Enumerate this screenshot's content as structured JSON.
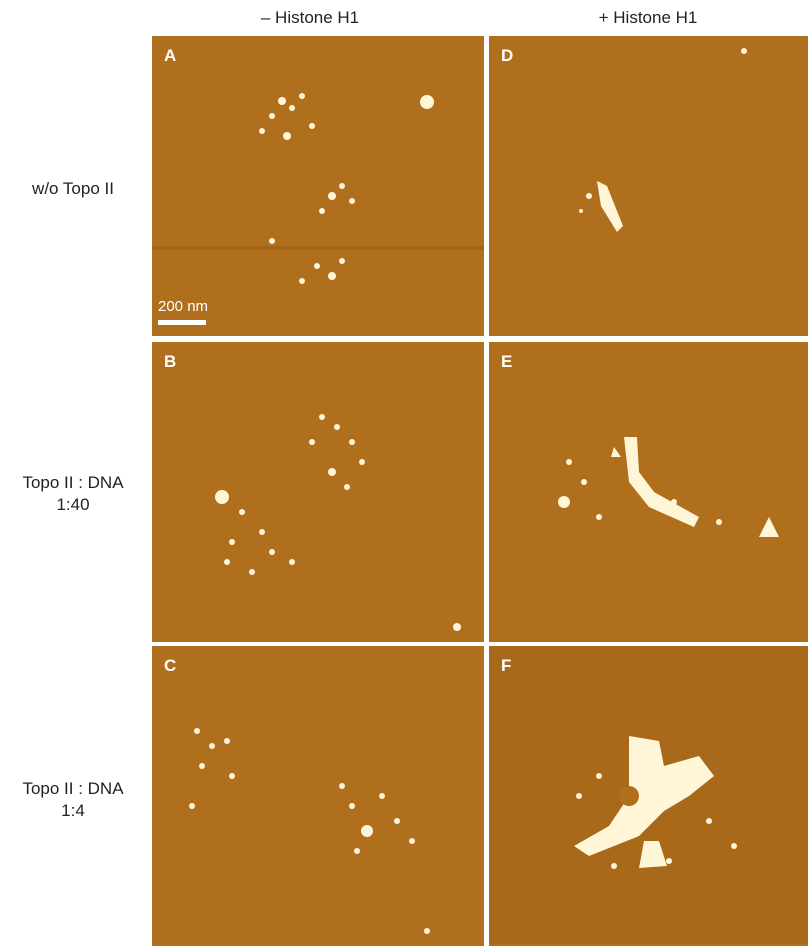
{
  "columns": [
    "– Histone H1",
    "+ Histone H1"
  ],
  "rows": [
    {
      "label_line1": "w/o Topo II",
      "label_line2": ""
    },
    {
      "label_line1": "Topo II : DNA",
      "label_line2": "1:40"
    },
    {
      "label_line1": "Topo II : DNA",
      "label_line2": "1:4"
    }
  ],
  "panels": {
    "A": "A",
    "B": "B",
    "C": "C",
    "D": "D",
    "E": "E",
    "F": "F"
  },
  "scale_bar": "200 nm",
  "colors": {
    "substrate": "#b06f1c",
    "feature": "#fff6d8"
  }
}
